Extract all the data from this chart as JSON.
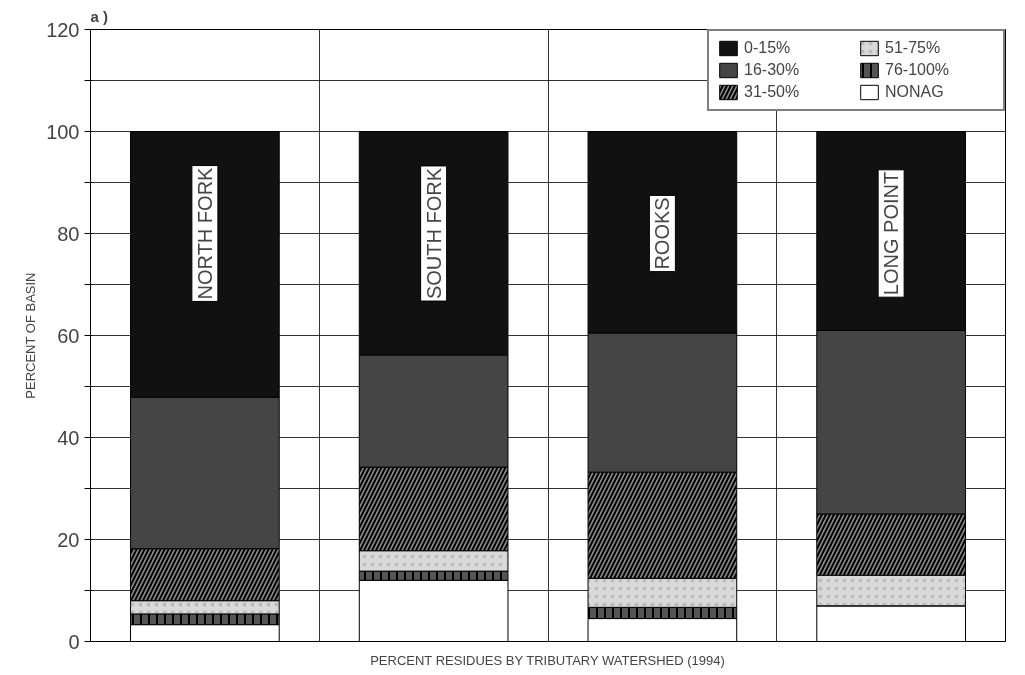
{
  "chart_data": {
    "type": "bar",
    "stacked": true,
    "title": "a )",
    "xlabel": "PERCENT RESIDUES BY TRIBUTARY WATERSHED (1994)",
    "ylabel": "PERCENT OF BASIN",
    "categories": [
      "NORTH FORK",
      "SOUTH FORK",
      "ROOKS",
      "LONG POINT"
    ],
    "series": [
      {
        "name": "NONAG",
        "color": "#ffffff",
        "values": [
          3.3,
          12,
          4.5,
          7
        ]
      },
      {
        "name": "76-100%",
        "color": "#555555",
        "values": [
          2.1,
          1.8,
          2.2,
          0
        ]
      },
      {
        "name": "51-75%",
        "color": "#d9d9d9",
        "values": [
          2.6,
          4,
          5.7,
          6
        ]
      },
      {
        "name": "31-50%",
        "color": "#8c8c8c",
        "values": [
          10.2,
          16.4,
          20.8,
          12
        ]
      },
      {
        "name": "16-30%",
        "color": "#454545",
        "values": [
          29.7,
          22,
          27.3,
          36
        ]
      },
      {
        "name": "0-15%",
        "color": "#111111",
        "values": [
          52.1,
          43.8,
          39.5,
          39
        ]
      }
    ],
    "ylim": [
      0,
      120
    ],
    "yticks": [
      0,
      {
        "value": 10,
        "label": null
      },
      20,
      {
        "value": 30,
        "label": null
      },
      40,
      {
        "value": 50,
        "label": null
      },
      60,
      {
        "value": 70,
        "label": null
      },
      80,
      {
        "value": 90,
        "label": null
      },
      100,
      {
        "value": 110,
        "label": null
      },
      120
    ],
    "grid": true,
    "legend": "top right"
  }
}
